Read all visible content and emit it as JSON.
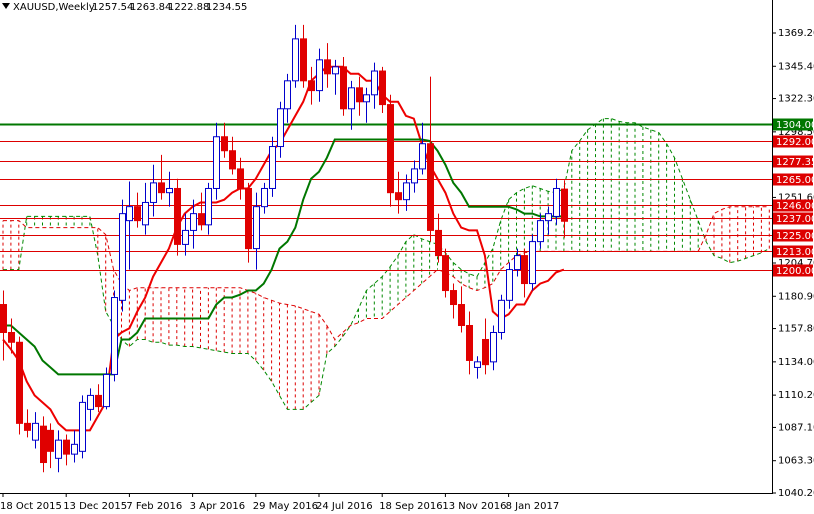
{
  "chart_data": {
    "type": "candlestick",
    "title": "XAUUSD,Weekly",
    "open": [
      1175,
      1155,
      1148,
      1090,
      1078,
      1088,
      1085,
      1065,
      1078,
      1068,
      1070,
      1100,
      1110,
      1102,
      1125,
      1178,
      1235,
      1245,
      1232,
      1248,
      1262,
      1255,
      1258,
      1218,
      1228,
      1240,
      1232,
      1258,
      1295,
      1285,
      1272,
      1258,
      1215,
      1245,
      1258,
      1288,
      1315,
      1335,
      1365,
      1335,
      1328,
      1350,
      1340,
      1345,
      1315,
      1330,
      1320,
      1325,
      1342,
      1318,
      1255,
      1250,
      1262,
      1272,
      1290,
      1228,
      1210,
      1185,
      1175,
      1160,
      1130,
      1150,
      1134,
      1155,
      1178,
      1200,
      1210,
      1190,
      1220,
      1235,
      1238,
      1257.54
    ],
    "high": [
      1185,
      1165,
      1152,
      1100,
      1098,
      1095,
      1090,
      1085,
      1082,
      1085,
      1110,
      1115,
      1118,
      1130,
      1185,
      1250,
      1263,
      1255,
      1262,
      1275,
      1282,
      1270,
      1265,
      1240,
      1250,
      1255,
      1262,
      1305,
      1305,
      1295,
      1280,
      1262,
      1255,
      1262,
      1295,
      1320,
      1340,
      1375,
      1375,
      1345,
      1358,
      1362,
      1350,
      1352,
      1335,
      1338,
      1330,
      1348,
      1345,
      1325,
      1270,
      1268,
      1278,
      1305,
      1338,
      1240,
      1215,
      1190,
      1188,
      1170,
      1138,
      1165,
      1160,
      1182,
      1205,
      1215,
      1215,
      1225,
      1240,
      1245,
      1265,
      1263.84
    ],
    "low": [
      1135,
      1140,
      1082,
      1080,
      1072,
      1055,
      1058,
      1055,
      1060,
      1062,
      1065,
      1092,
      1098,
      1100,
      1120,
      1170,
      1200,
      1230,
      1225,
      1238,
      1250,
      1245,
      1210,
      1210,
      1215,
      1228,
      1225,
      1250,
      1280,
      1268,
      1250,
      1205,
      1200,
      1240,
      1252,
      1280,
      1305,
      1330,
      1330,
      1318,
      1320,
      1330,
      1325,
      1310,
      1300,
      1310,
      1305,
      1315,
      1312,
      1245,
      1240,
      1242,
      1255,
      1268,
      1220,
      1205,
      1180,
      1165,
      1155,
      1125,
      1122,
      1125,
      1128,
      1150,
      1172,
      1195,
      1180,
      1185,
      1215,
      1225,
      1232,
      1222.88
    ],
    "close": [
      1155,
      1148,
      1090,
      1085,
      1090,
      1062,
      1070,
      1078,
      1068,
      1075,
      1105,
      1110,
      1102,
      1125,
      1180,
      1240,
      1245,
      1235,
      1248,
      1262,
      1255,
      1258,
      1218,
      1228,
      1240,
      1232,
      1258,
      1295,
      1285,
      1272,
      1258,
      1215,
      1245,
      1258,
      1288,
      1315,
      1335,
      1365,
      1335,
      1328,
      1350,
      1340,
      1345,
      1315,
      1330,
      1320,
      1325,
      1342,
      1318,
      1255,
      1250,
      1262,
      1272,
      1290,
      1228,
      1210,
      1185,
      1175,
      1160,
      1135,
      1134,
      1132,
      1155,
      1178,
      1200,
      1210,
      1190,
      1220,
      1235,
      1240,
      1258,
      1234.55
    ],
    "up_color": "#0000cc",
    "down_color": "#e00000",
    "lines": [
      {
        "color": "#ee0000",
        "values": [
          1150,
          1143,
          1135,
          1120,
          1110,
          1105,
          1100,
          1090,
          1085,
          1085,
          1085,
          1085,
          1095,
          1105,
          1150,
          1155,
          1158,
          1170,
          1180,
          1195,
          1205,
          1215,
          1230,
          1240,
          1245,
          1248,
          1248,
          1248,
          1250,
          1255,
          1258,
          1258,
          1265,
          1275,
          1285,
          1290,
          1300,
          1310,
          1320,
          1335,
          1340,
          1345,
          1345,
          1345,
          1340,
          1340,
          1335,
          1335,
          1325,
          1320,
          1320,
          1310,
          1308,
          1290,
          1275,
          1265,
          1255,
          1240,
          1230,
          1228,
          1228,
          1210,
          1170,
          1165,
          1168,
          1175,
          1175,
          1185,
          1190,
          1192,
          1198,
          1200
        ]
      },
      {
        "color": "#007700",
        "values": [
          1160,
          1160,
          1155,
          1150,
          1145,
          1135,
          1130,
          1125,
          1125,
          1125,
          1125,
          1125,
          1125,
          1125,
          1125,
          1150,
          1150,
          1155,
          1165,
          1165,
          1165,
          1165,
          1165,
          1165,
          1165,
          1165,
          1165,
          1175,
          1180,
          1180,
          1182,
          1185,
          1185,
          1190,
          1200,
          1215,
          1220,
          1230,
          1250,
          1265,
          1270,
          1280,
          1293,
          1293,
          1293,
          1293,
          1293,
          1293,
          1293,
          1293,
          1293,
          1293,
          1293,
          1293,
          1292,
          1285,
          1275,
          1262,
          1255,
          1245,
          1245,
          1245,
          1245,
          1245,
          1245,
          1243,
          1240,
          1240,
          1238,
          1238,
          1238,
          1238
        ]
      }
    ],
    "cloud": {
      "span_a": {
        "color": "#008800",
        "values": [
          1200,
          1200,
          1200,
          1238,
          1238,
          1238,
          1238,
          1238,
          1238,
          1238,
          1238,
          1238,
          1210,
          1170,
          1160,
          1150,
          1145,
          1150,
          1150,
          1148,
          1148,
          1146,
          1146,
          1145,
          1145,
          1144,
          1143,
          1142,
          1141,
          1140,
          1140,
          1140,
          1135,
          1128,
          1120,
          1110,
          1100,
          1100,
          1100,
          1105,
          1110,
          1140,
          1145,
          1152,
          1160,
          1172,
          1185,
          1190,
          1195,
          1202,
          1210,
          1220,
          1225,
          1222,
          1220,
          1218,
          1212,
          1205,
          1200,
          1197,
          1195,
          1205,
          1215,
          1235,
          1250,
          1255,
          1258,
          1260,
          1258,
          1256,
          1255,
          1258,
          1285,
          1292,
          1300,
          1304,
          1308,
          1308,
          1306,
          1305,
          1305,
          1302,
          1300,
          1298,
          1290,
          1280,
          1265,
          1250,
          1235,
          1220,
          1210,
          1208,
          1205,
          1206,
          1208,
          1210,
          1212,
          1215
        ]
      },
      "span_b": {
        "color": "#dd0000",
        "values": [
          1235,
          1235,
          1235,
          1230,
          1230,
          1230,
          1230,
          1230,
          1230,
          1230,
          1230,
          1230,
          1230,
          1225,
          1200,
          1190,
          1185,
          1187,
          1187,
          1187,
          1187,
          1187,
          1187,
          1187,
          1187,
          1187,
          1187,
          1187,
          1187,
          1187,
          1187,
          1185,
          1183,
          1180,
          1178,
          1176,
          1175,
          1174,
          1172,
          1170,
          1168,
          1160,
          1150,
          1155,
          1160,
          1162,
          1165,
          1165,
          1165,
          1170,
          1175,
          1180,
          1185,
          1190,
          1195,
          1200,
          1198,
          1195,
          1190,
          1187,
          1185,
          1187,
          1190,
          1200,
          1205,
          1210,
          1212,
          1213,
          1213,
          1213,
          1213,
          1213,
          1213,
          1213,
          1213,
          1213,
          1213,
          1213,
          1213,
          1213,
          1213,
          1213,
          1213,
          1213,
          1213,
          1213,
          1213,
          1213,
          1213,
          1225,
          1240,
          1243,
          1245,
          1245,
          1245,
          1245,
          1245,
          1245
        ]
      }
    },
    "levels": [
      {
        "value": 1304,
        "label": "1304.00",
        "color": "#007700"
      },
      {
        "value": 1292,
        "label": "1292.00",
        "color": "#dd0000"
      },
      {
        "value": 1277.35,
        "label": "1277.35",
        "color": "#dd0000"
      },
      {
        "value": 1265,
        "label": "1265.00",
        "color": "#dd0000"
      },
      {
        "value": 1246,
        "label": "1246.00",
        "color": "#dd0000"
      },
      {
        "value": 1237,
        "label": "1237.00",
        "color": "#dd0000"
      },
      {
        "value": 1225,
        "label": "1225.00",
        "color": "#dd0000"
      },
      {
        "value": 1213,
        "label": "1213.00",
        "color": "#dd0000"
      },
      {
        "value": 1200,
        "label": "1200.00",
        "color": "#dd0000"
      }
    ],
    "ylim": [
      1040.2,
      1392.8
    ],
    "yticks": [
      {
        "value": 1369.2,
        "label": "1369.20"
      },
      {
        "value": 1345.4,
        "label": "1345.40"
      },
      {
        "value": 1322.3,
        "label": "1322.30"
      },
      {
        "value": 1298.5,
        "label": "1298.50"
      },
      {
        "value": 1251.6,
        "label": "1251.60"
      },
      {
        "value": 1204.7,
        "label": "1204.70"
      },
      {
        "value": 1180.9,
        "label": "1180.90"
      },
      {
        "value": 1157.8,
        "label": "1157.80"
      },
      {
        "value": 1134,
        "label": "1134.00"
      },
      {
        "value": 1110.2,
        "label": "1110.20"
      },
      {
        "value": 1087.1,
        "label": "1087.10"
      },
      {
        "value": 1063.3,
        "label": "1063.30"
      },
      {
        "value": 1040.2,
        "label": "1040.20"
      }
    ],
    "xticks": [
      {
        "value": 0,
        "label": "18 Oct 2015"
      },
      {
        "value": 8,
        "label": "13 Dec 2015"
      },
      {
        "value": 16,
        "label": "7 Feb 2016"
      },
      {
        "value": 24,
        "label": "3 Apr 2016"
      },
      {
        "value": 32,
        "label": "29 May 2016"
      },
      {
        "value": 40,
        "label": "24 Jul 2016"
      },
      {
        "value": 48,
        "label": "18 Sep 2016"
      },
      {
        "value": 56,
        "label": "13 Nov 2016"
      },
      {
        "value": 64,
        "label": "8 Jan 2017"
      }
    ]
  }
}
